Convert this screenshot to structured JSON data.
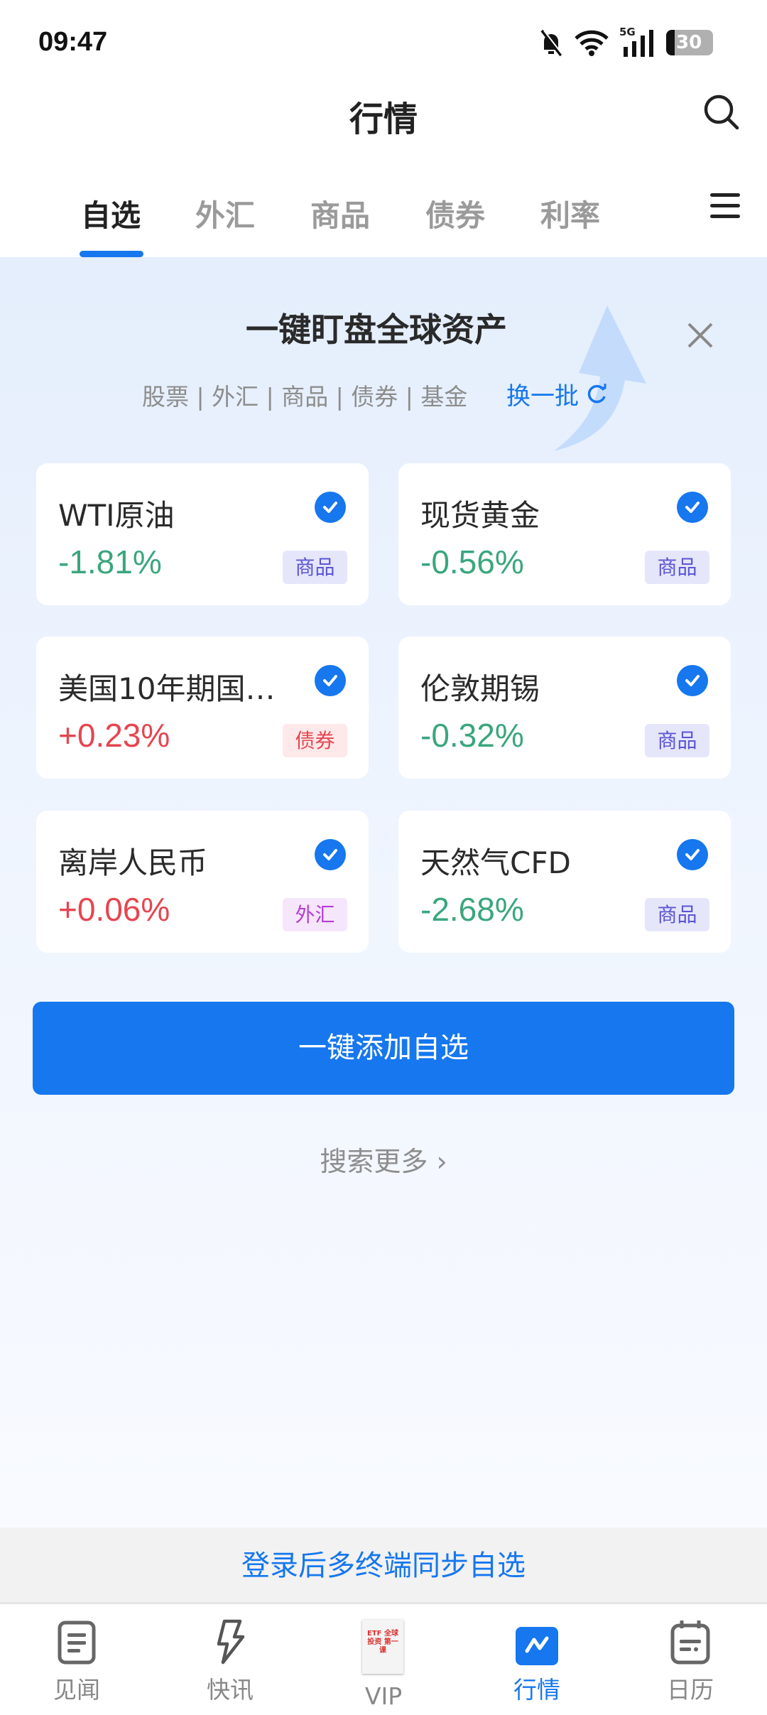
{
  "status_bar": {
    "time": "09:47",
    "network": "5G",
    "battery": "30",
    "icons": [
      "bell-off-icon",
      "wifi-icon",
      "signal-icon",
      "battery-icon"
    ]
  },
  "header": {
    "title": "行情",
    "search_icon": "search-icon"
  },
  "tabs": [
    {
      "label": "自选",
      "active": true
    },
    {
      "label": "外汇"
    },
    {
      "label": "商品"
    },
    {
      "label": "债券"
    },
    {
      "label": "利率"
    }
  ],
  "promo": {
    "heading": "一键盯盘全球资产",
    "categories": "股票 | 外汇 | 商品 | 债券 | 基金",
    "refresh_label": "换一批",
    "cards": [
      {
        "name": "WTI原油",
        "change": "-1.81%",
        "tag": "商品",
        "direction": "down",
        "checked": true
      },
      {
        "name": "现货黄金",
        "change": "-0.56%",
        "tag": "商品",
        "direction": "down",
        "checked": true
      },
      {
        "name": "美国10年期国…",
        "change": "+0.23%",
        "tag": "债券",
        "direction": "up",
        "checked": true
      },
      {
        "name": "伦敦期锡",
        "change": "-0.32%",
        "tag": "商品",
        "direction": "down",
        "checked": true
      },
      {
        "name": "离岸人民币",
        "change": "+0.06%",
        "tag": "外汇",
        "direction": "up",
        "checked": true
      },
      {
        "name": "天然气CFD",
        "change": "-2.68%",
        "tag": "商品",
        "direction": "down",
        "checked": true
      }
    ],
    "add_button": "一键添加自选",
    "search_more": "搜索更多 ›"
  },
  "login_banner": "登录后多终端同步自选",
  "bottom_nav": [
    {
      "label": "见闻",
      "icon": "document-icon"
    },
    {
      "label": "快讯",
      "icon": "lightning-icon"
    },
    {
      "label": "VIP",
      "icon": "book-cover-icon",
      "cover_text": "ETF 全球投资 第一课"
    },
    {
      "label": "行情",
      "icon": "chart-icon",
      "active": true
    },
    {
      "label": "日历",
      "icon": "calendar-icon"
    }
  ],
  "colors": {
    "accent": "#1677ee",
    "up": "#e5464f",
    "down": "#3aa67e",
    "tag_commodity": "#5b55d6",
    "tag_bond": "#e5464f",
    "tag_fx": "#b33dd4"
  }
}
